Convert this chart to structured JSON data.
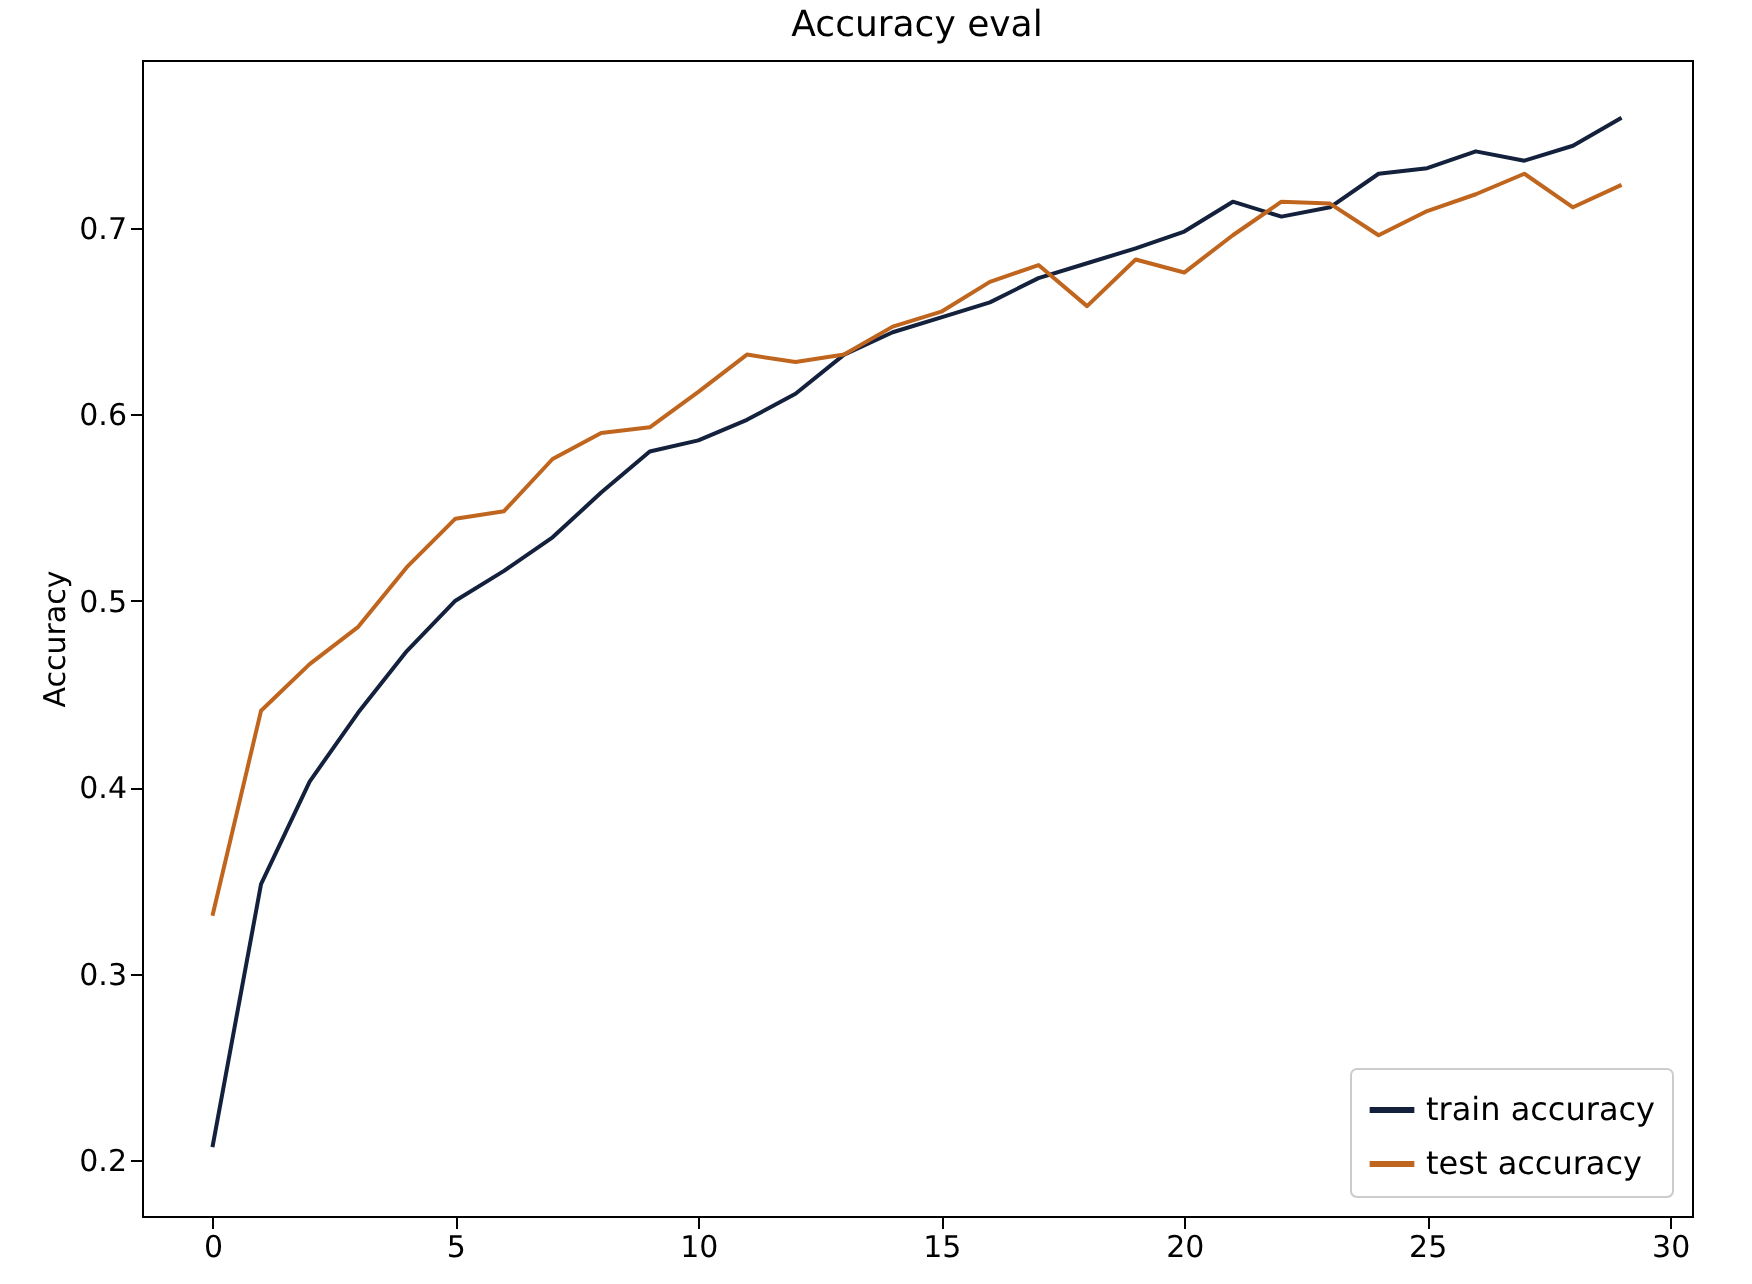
{
  "chart_data": {
    "type": "line",
    "title": "Accuracy eval",
    "ylabel": "Accuracy",
    "x": [
      0,
      1,
      2,
      3,
      4,
      5,
      6,
      7,
      8,
      9,
      10,
      11,
      12,
      13,
      14,
      15,
      16,
      17,
      18,
      19,
      20,
      21,
      22,
      23,
      24,
      25,
      26,
      27,
      28,
      29
    ],
    "series": [
      {
        "name": "train accuracy",
        "color": "#14213d",
        "values": [
          0.207,
          0.348,
          0.403,
          0.44,
          0.473,
          0.5,
          0.516,
          0.534,
          0.558,
          0.58,
          0.586,
          0.597,
          0.611,
          0.632,
          0.644,
          0.652,
          0.66,
          0.673,
          0.681,
          0.689,
          0.698,
          0.714,
          0.706,
          0.711,
          0.729,
          0.732,
          0.741,
          0.736,
          0.744,
          0.759
        ]
      },
      {
        "name": "test accuracy",
        "color": "#c0651e",
        "values": [
          0.331,
          0.441,
          0.466,
          0.486,
          0.518,
          0.544,
          0.548,
          0.576,
          0.59,
          0.593,
          0.612,
          0.632,
          0.628,
          0.632,
          0.647,
          0.655,
          0.671,
          0.68,
          0.658,
          0.683,
          0.676,
          0.696,
          0.714,
          0.713,
          0.696,
          0.709,
          0.718,
          0.729,
          0.711,
          0.723
        ]
      }
    ],
    "xlim": [
      -1.45,
      30.45
    ],
    "xticks": [
      0,
      5,
      10,
      15,
      20,
      25,
      30
    ],
    "ylim": [
      0.17,
      0.79
    ],
    "yticks": [
      0.2,
      0.3,
      0.4,
      0.5,
      0.6,
      0.7
    ],
    "grid": false,
    "legend": "bottom right",
    "marker": "none",
    "line_style": "solid"
  }
}
